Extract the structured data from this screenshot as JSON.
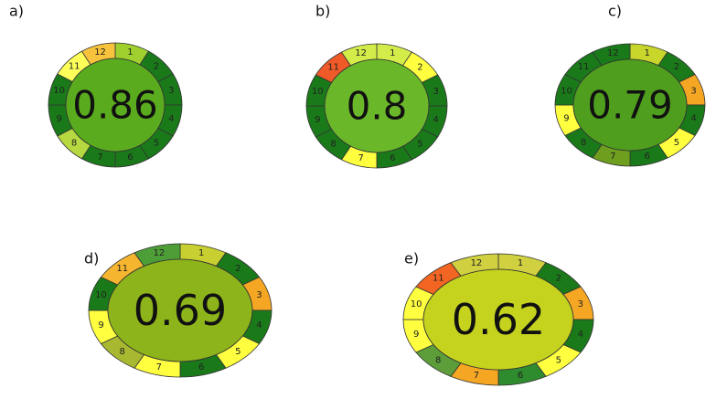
{
  "panels": [
    {
      "label": "a)",
      "score": "0.86",
      "center_color": "#5aab1e",
      "segments": [
        {
          "label": "1",
          "color": "#9fd02e"
        },
        {
          "label": "2",
          "color": "#1a7a1a"
        },
        {
          "label": "3",
          "color": "#1a7a1a"
        },
        {
          "label": "4",
          "color": "#1a7a1a"
        },
        {
          "label": "5",
          "color": "#1a7a1a"
        },
        {
          "label": "6",
          "color": "#1a7a1a"
        },
        {
          "label": "7",
          "color": "#1a7a1a"
        },
        {
          "label": "8",
          "color": "#b6d840"
        },
        {
          "label": "9",
          "color": "#1a7a1a"
        },
        {
          "label": "10",
          "color": "#1a7a1a"
        },
        {
          "label": "11",
          "color": "#ffff5a"
        },
        {
          "label": "12",
          "color": "#f7c33c"
        }
      ]
    },
    {
      "label": "b)",
      "score": "0.8",
      "center_color": "#6ab82a",
      "segments": [
        {
          "label": "1",
          "color": "#d4ec4a"
        },
        {
          "label": "2",
          "color": "#ffff40"
        },
        {
          "label": "3",
          "color": "#1a7a1a"
        },
        {
          "label": "4",
          "color": "#1a7a1a"
        },
        {
          "label": "5",
          "color": "#1a7a1a"
        },
        {
          "label": "6",
          "color": "#1a7a1a"
        },
        {
          "label": "7",
          "color": "#ffff40"
        },
        {
          "label": "8",
          "color": "#1a7a1a"
        },
        {
          "label": "9",
          "color": "#1a7a1a"
        },
        {
          "label": "10",
          "color": "#1a7a1a"
        },
        {
          "label": "11",
          "color": "#f05a28"
        },
        {
          "label": "12",
          "color": "#d4ec4a"
        }
      ]
    },
    {
      "label": "c)",
      "score": "0.79",
      "center_color": "#4f9e1e",
      "segments": [
        {
          "label": "1",
          "color": "#c8d62b"
        },
        {
          "label": "2",
          "color": "#1a7a1a"
        },
        {
          "label": "3",
          "color": "#f5a623"
        },
        {
          "label": "4",
          "color": "#1a7a1a"
        },
        {
          "label": "5",
          "color": "#ffff40"
        },
        {
          "label": "6",
          "color": "#1a7a1a"
        },
        {
          "label": "7",
          "color": "#6e9e1e"
        },
        {
          "label": "8",
          "color": "#1a7a1a"
        },
        {
          "label": "9",
          "color": "#ffff40"
        },
        {
          "label": "10",
          "color": "#1a7a1a"
        },
        {
          "label": "11",
          "color": "#1a7a1a"
        },
        {
          "label": "12",
          "color": "#1a7a1a"
        }
      ]
    },
    {
      "label": "d)",
      "score": "0.69",
      "center_color": "#8db41a",
      "segments": [
        {
          "label": "1",
          "color": "#c8cf30"
        },
        {
          "label": "2",
          "color": "#1a7a1a"
        },
        {
          "label": "3",
          "color": "#f5a623"
        },
        {
          "label": "4",
          "color": "#1a7a1a"
        },
        {
          "label": "5",
          "color": "#ffff40"
        },
        {
          "label": "6",
          "color": "#1a7a1a"
        },
        {
          "label": "7",
          "color": "#ffff40"
        },
        {
          "label": "8",
          "color": "#a8b830"
        },
        {
          "label": "9",
          "color": "#ffff40"
        },
        {
          "label": "10",
          "color": "#1a7a1a"
        },
        {
          "label": "11",
          "color": "#f5b52e"
        },
        {
          "label": "12",
          "color": "#4e9e38"
        }
      ]
    },
    {
      "label": "e)",
      "score": "0.62",
      "center_color": "#c5d31e",
      "segments": [
        {
          "label": "1",
          "color": "#d0d040"
        },
        {
          "label": "2",
          "color": "#1a7a1a"
        },
        {
          "label": "3",
          "color": "#f5a623"
        },
        {
          "label": "4",
          "color": "#1a7a1a"
        },
        {
          "label": "5",
          "color": "#ffff40"
        },
        {
          "label": "6",
          "color": "#2e8b2e"
        },
        {
          "label": "7",
          "color": "#f5a623"
        },
        {
          "label": "8",
          "color": "#5e9e3a"
        },
        {
          "label": "9",
          "color": "#ffff40"
        },
        {
          "label": "10",
          "color": "#ffff40"
        },
        {
          "label": "11",
          "color": "#f26522"
        },
        {
          "label": "12",
          "color": "#d0d040"
        }
      ]
    }
  ]
}
